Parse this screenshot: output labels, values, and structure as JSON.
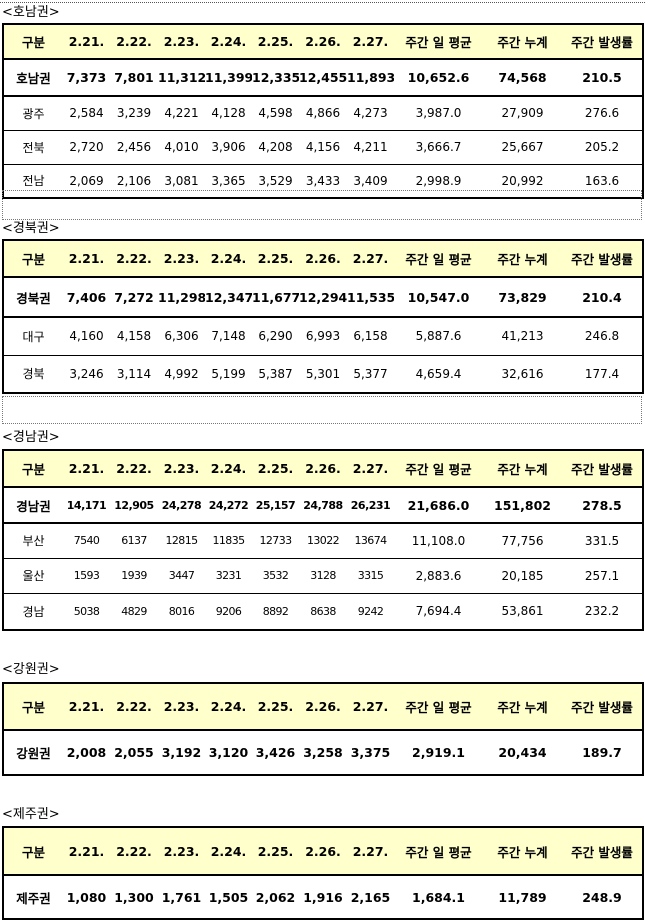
{
  "headers": [
    "구분",
    "2.21.",
    "2.22.",
    "2.23.",
    "2.24.",
    "2.25.",
    "2.26.",
    "2.27.",
    "주간 일 평균",
    "주간 누계",
    "주간 발생률"
  ],
  "sections": [
    {
      "title": "<호남권>",
      "total": [
        "호남권",
        "7,373",
        "7,801",
        "11,312",
        "11,399",
        "12,335",
        "12,455",
        "11,893",
        "10,652.6",
        "74,568",
        "210.5"
      ],
      "rows": [
        [
          "광주",
          "2,584",
          "3,239",
          "4,221",
          "4,128",
          "4,598",
          "4,866",
          "4,273",
          "3,987.0",
          "27,909",
          "276.6"
        ],
        [
          "전북",
          "2,720",
          "2,456",
          "4,010",
          "3,906",
          "4,208",
          "4,156",
          "4,211",
          "3,666.7",
          "25,667",
          "205.2"
        ],
        [
          "전남",
          "2,069",
          "2,106",
          "3,081",
          "3,365",
          "3,529",
          "3,433",
          "3,409",
          "2,998.9",
          "20,992",
          "163.6"
        ]
      ]
    },
    {
      "title": "<경북권>",
      "total": [
        "경북권",
        "7,406",
        "7,272",
        "11,298",
        "12,347",
        "11,677",
        "12,294",
        "11,535",
        "10,547.0",
        "73,829",
        "210.4"
      ],
      "rows": [
        [
          "대구",
          "4,160",
          "4,158",
          "6,306",
          "7,148",
          "6,290",
          "6,993",
          "6,158",
          "5,887.6",
          "41,213",
          "246.8"
        ],
        [
          "경북",
          "3,246",
          "3,114",
          "4,992",
          "5,199",
          "5,387",
          "5,301",
          "5,377",
          "4,659.4",
          "32,616",
          "177.4"
        ]
      ]
    },
    {
      "title": "<경남권>",
      "total": [
        "경남권",
        "14,171",
        "12,905",
        "24,278",
        "24,272",
        "25,157",
        "24,788",
        "26,231",
        "21,686.0",
        "151,802",
        "278.5"
      ],
      "rows": [
        [
          "부산",
          "7540",
          "6137",
          "12815",
          "11835",
          "12733",
          "13022",
          "13674",
          "11,108.0",
          "77,756",
          "331.5"
        ],
        [
          "울산",
          "1593",
          "1939",
          "3447",
          "3231",
          "3532",
          "3128",
          "3315",
          "2,883.6",
          "20,185",
          "257.1"
        ],
        [
          "경남",
          "5038",
          "4829",
          "8016",
          "9206",
          "8892",
          "8638",
          "9242",
          "7,694.4",
          "53,861",
          "232.2"
        ]
      ]
    },
    {
      "title": "<강원권>",
      "total": [
        "강원권",
        "2,008",
        "2,055",
        "3,192",
        "3,120",
        "3,426",
        "3,258",
        "3,375",
        "2,919.1",
        "20,434",
        "189.7"
      ],
      "rows": []
    },
    {
      "title": "<제주권>",
      "total": [
        "제주권",
        "1,080",
        "1,300",
        "1,761",
        "1,505",
        "2,062",
        "1,916",
        "2,165",
        "1,684.1",
        "11,789",
        "248.9"
      ],
      "rows": []
    }
  ]
}
